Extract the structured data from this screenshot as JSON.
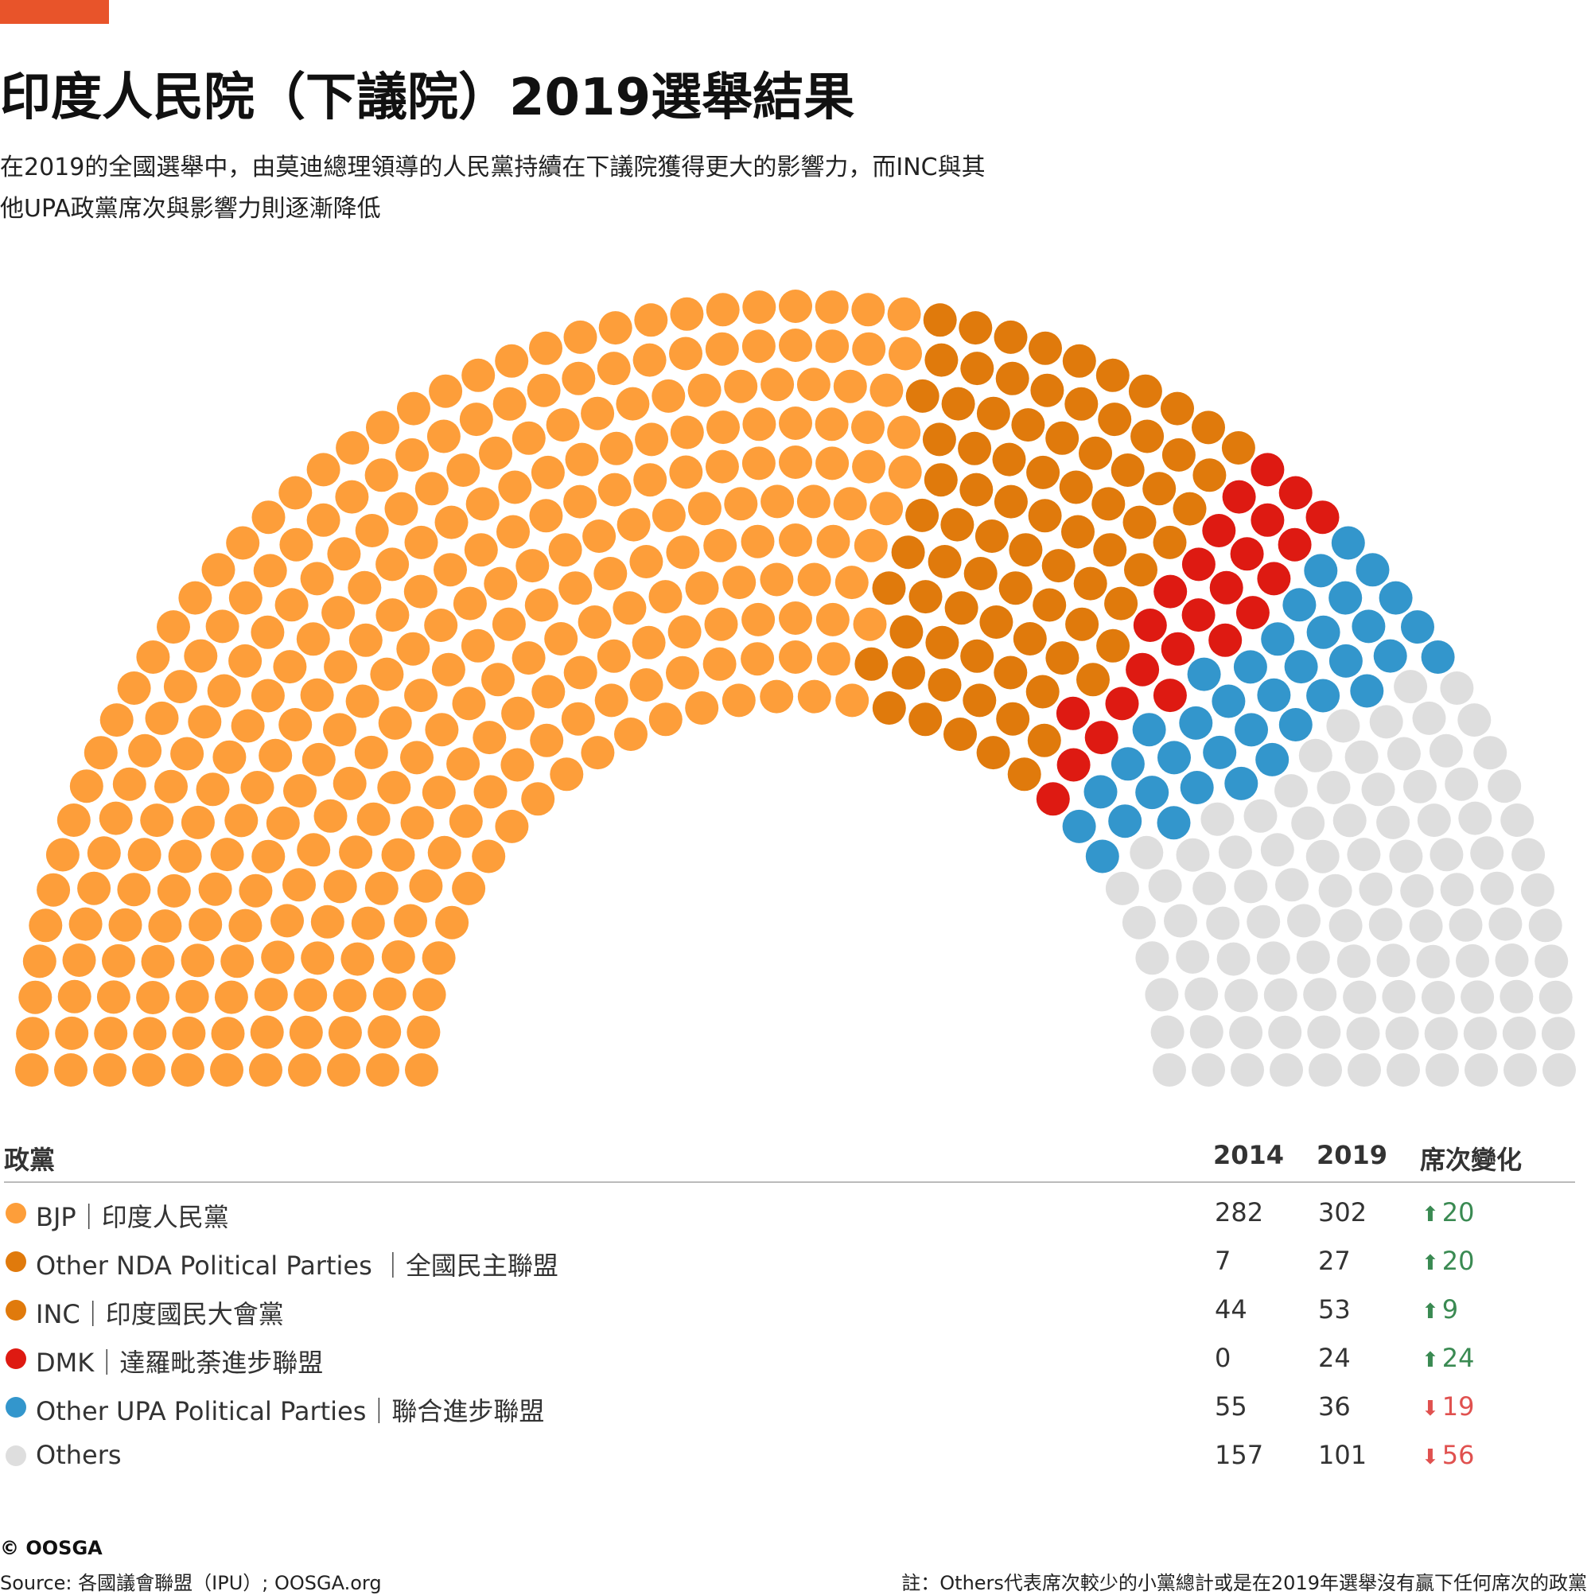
{
  "title": "印度人民院（下議院）2019選舉結果",
  "subtitle_line1": "在2019的全國選舉中，由莫迪總理領導的人民黨持續在下議院獲得更大的影響力，而INC與其",
  "subtitle_line2": "他UPA政黨席次與影響力則逐漸降低",
  "colors": {
    "accent": "#e8542a",
    "bjp": "#fd9e3a",
    "nda": "#e07a0c",
    "inc": "#e07a0c",
    "dmk": "#de1a12",
    "upa": "#3396cc",
    "others": "#dedede",
    "up": "#3a8a52",
    "down": "#e0514f"
  },
  "table": {
    "header_party": "政黨",
    "header_2014": "2014",
    "header_2019": "2019",
    "header_change": "席次變化"
  },
  "chart_data": {
    "type": "parliament",
    "total_seats": 543,
    "parties": [
      {
        "name": "BJP｜印度人民黨",
        "key": "bjp",
        "seats_2014": 282,
        "seats_2019": 302,
        "change": "20",
        "direction": "up",
        "arrow": "⬆"
      },
      {
        "name": "Other NDA Political Parties ｜全國民主聯盟",
        "key": "nda",
        "seats_2014": 7,
        "seats_2019": 27,
        "change": "20",
        "direction": "up",
        "arrow": "⬆"
      },
      {
        "name": "INC｜印度國民大會黨",
        "key": "inc",
        "seats_2014": 44,
        "seats_2019": 53,
        "change": "9",
        "direction": "up",
        "arrow": "⬆"
      },
      {
        "name": "DMK｜達羅毗荼進步聯盟",
        "key": "dmk",
        "seats_2014": 0,
        "seats_2019": 24,
        "change": "24",
        "direction": "up",
        "arrow": "⬆"
      },
      {
        "name": "Other UPA Political Parties｜聯合進步聯盟",
        "key": "upa",
        "seats_2014": 55,
        "seats_2019": 36,
        "change": "19",
        "direction": "down",
        "arrow": "⬇"
      },
      {
        "name": "Others",
        "key": "others",
        "seats_2014": 157,
        "seats_2019": 101,
        "change": "56",
        "direction": "down",
        "arrow": "⬇"
      }
    ]
  },
  "footer": {
    "credit": "© OOSGA",
    "source": "Source: 各國議會聯盟（IPU）; OOSGA.org",
    "note": "註：Others代表席次較少的小黨總計或是在2019年選舉沒有贏下任何席次的政黨"
  }
}
